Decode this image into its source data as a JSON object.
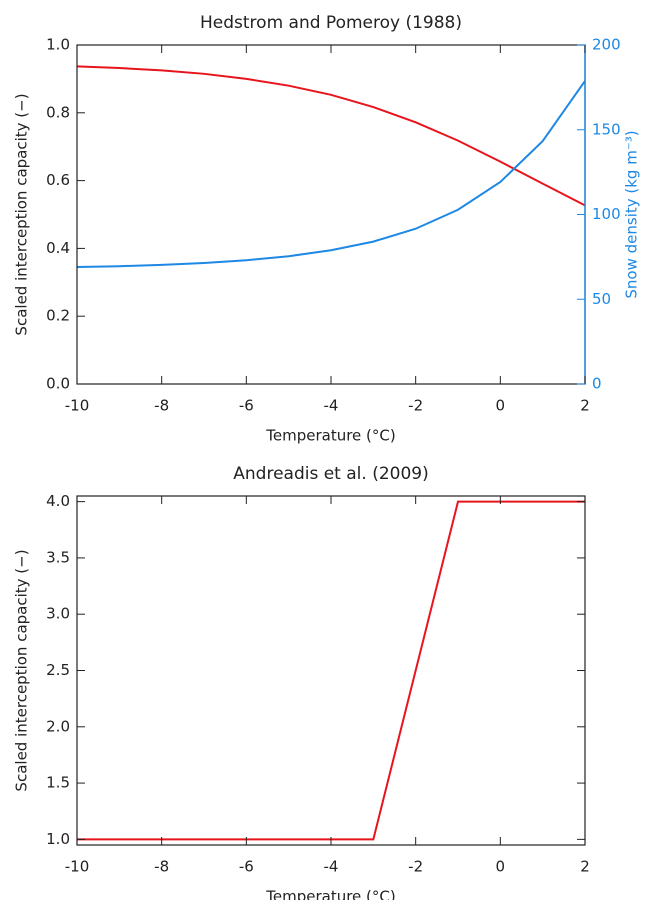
{
  "chart_data": [
    {
      "type": "line",
      "title": "Hedstrom and Pomeroy (1988)",
      "xlabel": "Temperature (°C)",
      "ylabel": "Scaled interception capacity (−)",
      "y2label": "Snow density (kg m⁻³)",
      "x": [
        -10,
        -9,
        -8,
        -7,
        -6,
        -5,
        -4,
        -3,
        -2,
        -1,
        0,
        1,
        2
      ],
      "series": [
        {
          "name": "Scaled interception capacity",
          "color": "#e8141c",
          "values": [
            0.937,
            0.932,
            0.925,
            0.915,
            0.9,
            0.88,
            0.853,
            0.817,
            0.772,
            0.718,
            0.656,
            0.591,
            0.527
          ]
        },
        {
          "name": "Snow density",
          "color": "#1e88e5",
          "axis": "y2",
          "values": [
            69.0,
            69.5,
            70.3,
            71.4,
            73.0,
            75.4,
            78.9,
            84.0,
            91.6,
            102.8,
            119.2,
            143.3,
            178.8
          ]
        }
      ],
      "xlim": [
        -10,
        2
      ],
      "xticks": [
        -10,
        -8,
        -6,
        -4,
        -2,
        0,
        2
      ],
      "ylim": [
        0,
        1
      ],
      "yticks": [
        {
          "value": 0,
          "label": "0.0"
        },
        0.2,
        0.4,
        0.6,
        0.8,
        {
          "value": 1,
          "label": "1.0"
        }
      ],
      "y2lim": [
        0,
        200
      ],
      "y2ticks": [
        0,
        50,
        100,
        150,
        200
      ]
    },
    {
      "type": "line",
      "title": "Andreadis et al. (2009)",
      "xlabel": "Temperature (°C)",
      "ylabel": "Scaled interception capacity (−)",
      "x": [
        -10,
        -3,
        -1,
        2
      ],
      "series": [
        {
          "name": "Scaled interception capacity",
          "color": "#e8141c",
          "values": [
            1,
            1,
            4,
            4
          ]
        }
      ],
      "xlim": [
        -10,
        2
      ],
      "xticks": [
        -10,
        -8,
        -6,
        -4,
        -2,
        0,
        2
      ],
      "ylim": [
        0.95,
        4.05
      ],
      "yticks": [
        {
          "value": 1,
          "label": "1.0"
        },
        1.5,
        {
          "value": 2,
          "label": "2.0"
        },
        2.5,
        {
          "value": 3,
          "label": "3.0"
        },
        3.5,
        {
          "value": 4,
          "label": "4.0"
        }
      ]
    }
  ]
}
